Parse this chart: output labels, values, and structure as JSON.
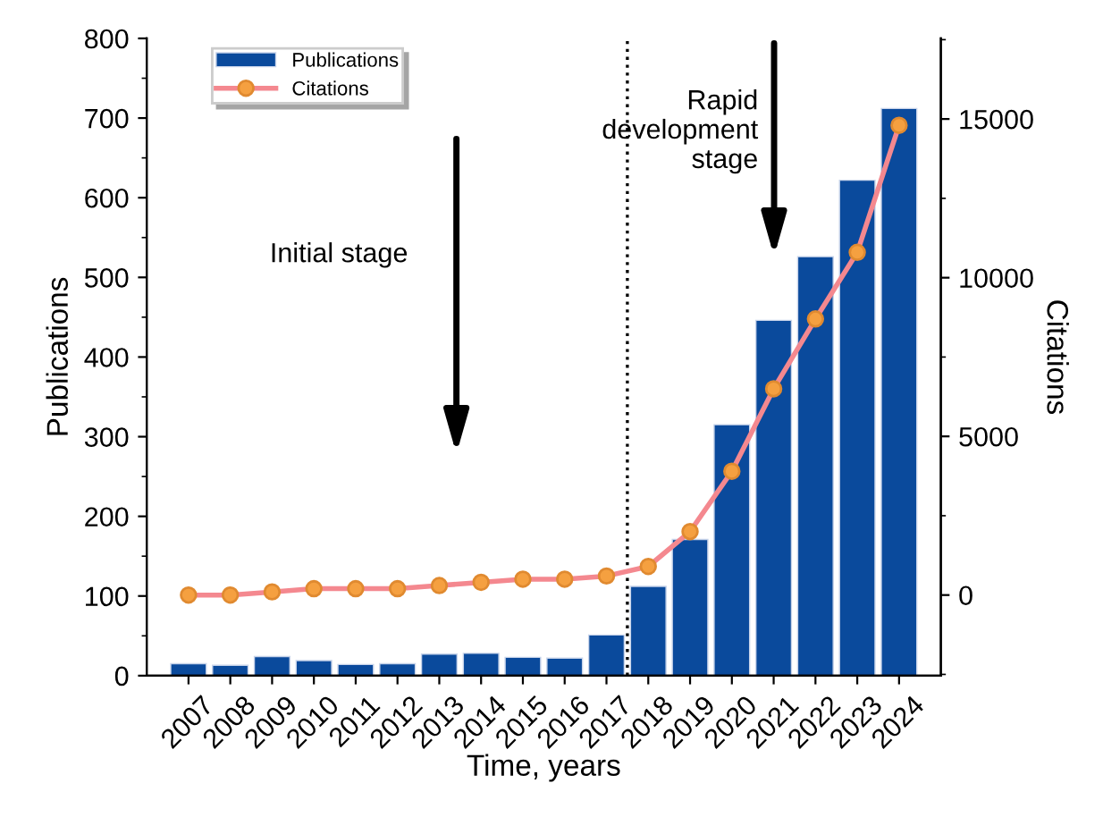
{
  "chart_data": {
    "type": "bar",
    "xlabel": "Time, years",
    "ylabel": "Publications",
    "y2label": "Citations",
    "x": [
      2007,
      2008,
      2009,
      2010,
      2011,
      2012,
      2013,
      2014,
      2015,
      2016,
      2017,
      2018,
      2019,
      2020,
      2021,
      2022,
      2023,
      2024
    ],
    "xlim": [
      2006,
      2025
    ],
    "xticks": [
      2007,
      2008,
      2009,
      2010,
      2011,
      2012,
      2013,
      2014,
      2015,
      2016,
      2017,
      2018,
      2019,
      2020,
      2021,
      2022,
      2023,
      2024
    ],
    "ylim": [
      0,
      800
    ],
    "yticks": [
      0,
      100,
      200,
      300,
      400,
      500,
      600,
      700,
      800
    ],
    "y2lim": [
      -2540,
      17540
    ],
    "y2ticks": [
      0,
      5000,
      10000,
      15000
    ],
    "series": [
      {
        "name": "Publications",
        "color": "#0a4a9c",
        "values": [
          15,
          13,
          24,
          19,
          14,
          15,
          27,
          28,
          23,
          22,
          51,
          112,
          171,
          315,
          446,
          526,
          622,
          712
        ]
      },
      {
        "name": "Citations",
        "type": "line",
        "axis": "y2",
        "color": "#f4888f",
        "marker": "circle",
        "values": [
          0,
          0,
          100,
          200,
          200,
          200,
          300,
          400,
          500,
          500,
          600,
          900,
          2000,
          3900,
          6500,
          8700,
          10800,
          14800
        ]
      }
    ],
    "ref_lines": [
      {
        "axis": "x",
        "value": 2017.5,
        "line_style": "dotted",
        "color": "#000000"
      }
    ],
    "annotations": [
      "Initial stage",
      "Rapid\ndevelopment\nstage"
    ],
    "legend": "top left",
    "grid": false
  }
}
